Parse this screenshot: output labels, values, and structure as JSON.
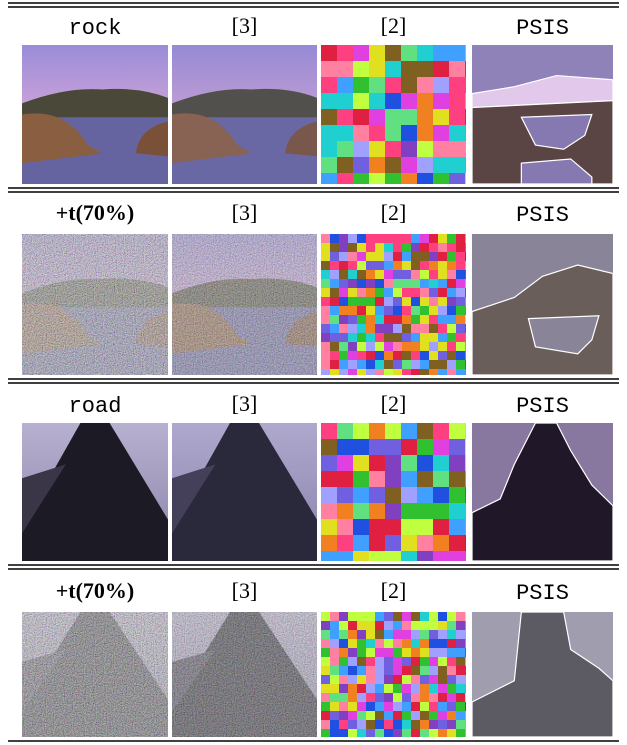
{
  "blocks": [
    {
      "labels": [
        "rock",
        "[3]",
        "[2]",
        "PSIS"
      ]
    },
    {
      "labels": [
        "+t(70%)",
        "[3]",
        "[2]",
        "PSIS"
      ]
    },
    {
      "labels": [
        "road",
        "[3]",
        "[2]",
        "PSIS"
      ]
    },
    {
      "labels": [
        "+t(70%)",
        "[3]",
        "[2]",
        "PSIS"
      ]
    }
  ]
}
